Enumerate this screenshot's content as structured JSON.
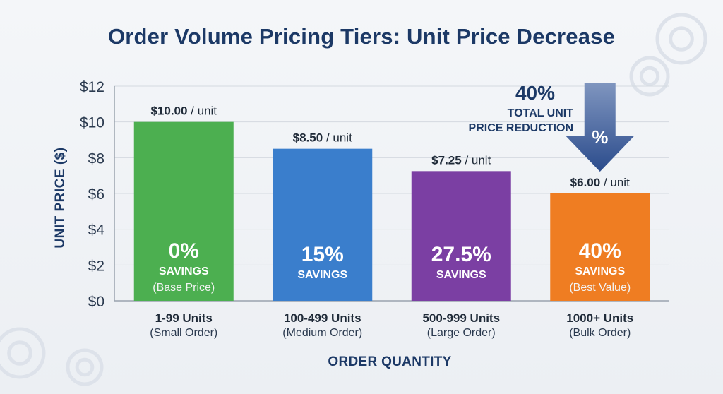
{
  "title": "Order Volume Pricing Tiers: Unit Price Decrease",
  "colors": {
    "title": "#1c3966",
    "bars": [
      "#4caf50",
      "#3a7ecc",
      "#7b3fa3",
      "#ef7d22"
    ],
    "arrow": "#2f4f8f",
    "trend_line": "#4a8fd4"
  },
  "chart_data": {
    "type": "bar",
    "title": "Order Volume Pricing Tiers: Unit Price Decrease",
    "xlabel": "ORDER QUANTITY",
    "ylabel": "UNIT PRICE ($)",
    "ylim": [
      0,
      12
    ],
    "yticks": [
      {
        "value": 0,
        "label": "$0"
      },
      {
        "value": 2,
        "label": "$2"
      },
      {
        "value": 4,
        "label": "$4"
      },
      {
        "value": 6,
        "label": "$6"
      },
      {
        "value": 8,
        "label": "$8"
      },
      {
        "value": 10,
        "label": "$10"
      },
      {
        "value": 12,
        "label": "$12"
      }
    ],
    "grid": true,
    "bars": [
      {
        "category": "1-99 Units",
        "subcategory": "(Small Order)",
        "value": 10.0,
        "price_label": "$10.00",
        "unit_label": " / unit",
        "pct_label": "0%",
        "savings_label": "SAVINGS",
        "note": "(Base Price)",
        "color": "#4caf50"
      },
      {
        "category": "100-499 Units",
        "subcategory": "(Medium Order)",
        "value": 8.5,
        "price_label": "$8.50",
        "unit_label": " / unit",
        "pct_label": "15%",
        "savings_label": "SAVINGS",
        "note": "",
        "color": "#3a7ecc"
      },
      {
        "category": "500-999 Units",
        "subcategory": "(Large Order)",
        "value": 7.25,
        "price_label": "$7.25",
        "unit_label": " / unit",
        "pct_label": "27.5%",
        "savings_label": "SAVINGS",
        "note": "",
        "color": "#7b3fa3"
      },
      {
        "category": "1000+ Units",
        "subcategory": "(Bulk Order)",
        "value": 6.0,
        "price_label": "$6.00",
        "unit_label": " / unit",
        "pct_label": "40%",
        "savings_label": "SAVINGS",
        "note": "(Best Value)",
        "color": "#ef7d22"
      }
    ],
    "annotation": {
      "pct": "40%",
      "line1": "TOTAL UNIT",
      "line2": "PRICE REDUCTION",
      "arrow_symbol": "%"
    }
  }
}
